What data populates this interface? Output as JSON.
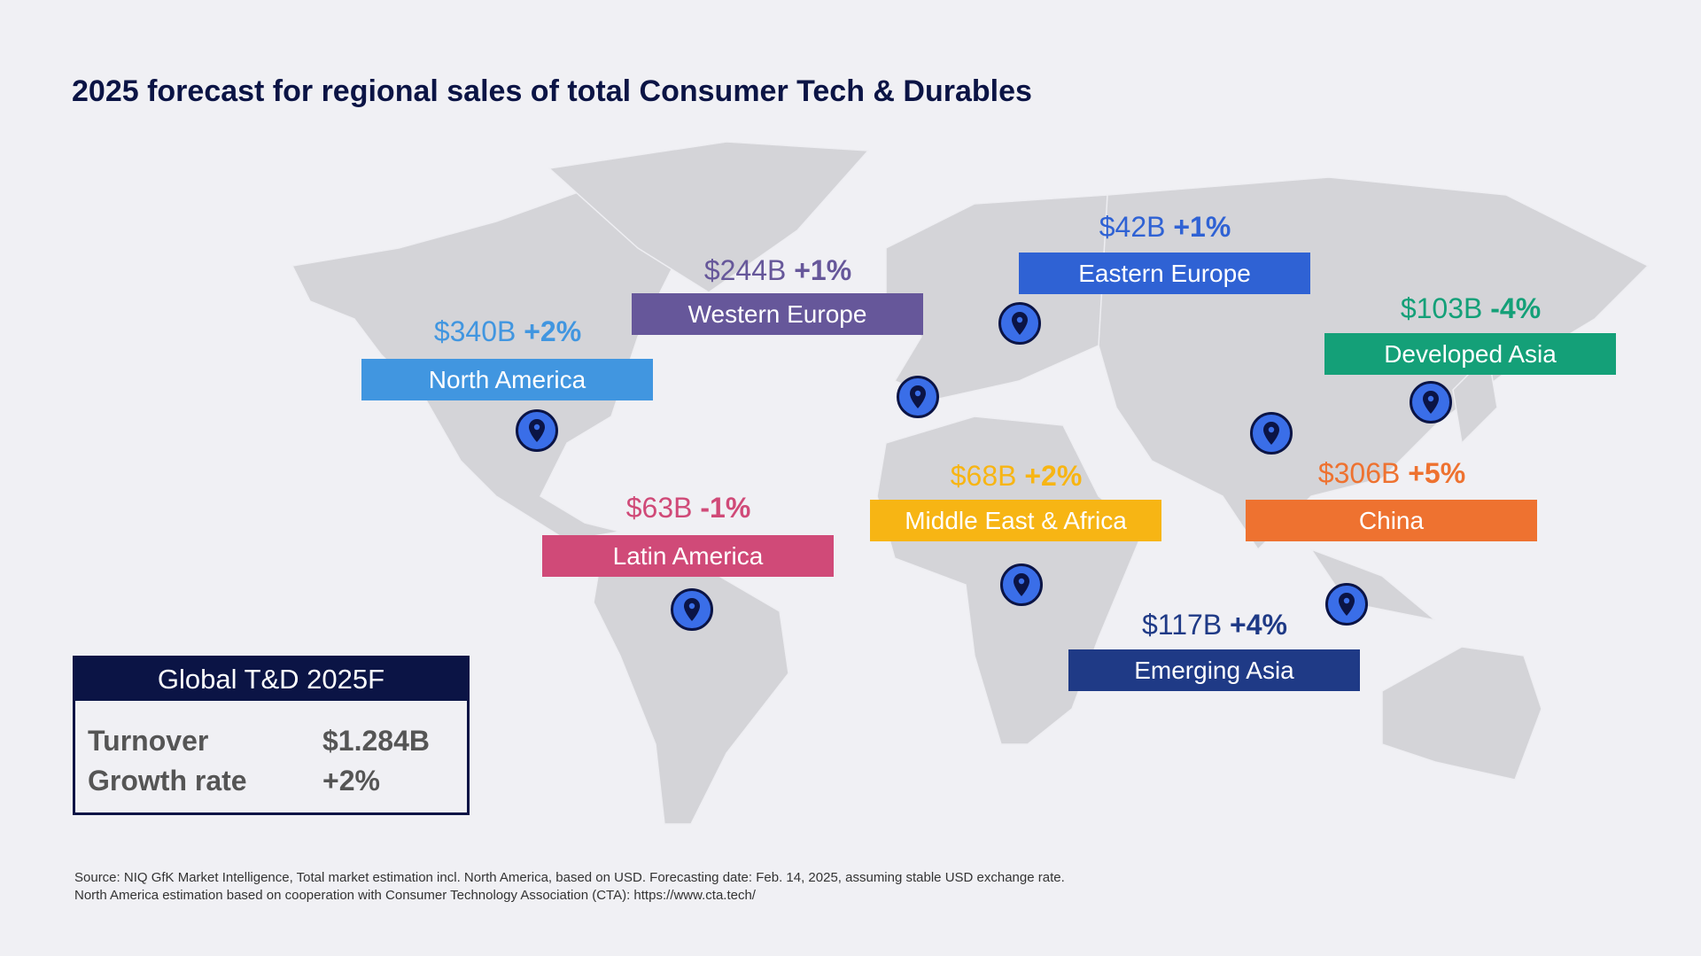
{
  "title": "2025 forecast for regional sales of total Consumer Tech & Durables",
  "regions": [
    {
      "name": "North America",
      "value": "$340B",
      "growth": "+2%",
      "color": "#4196e0"
    },
    {
      "name": "Western Europe",
      "value": "$244B",
      "growth": "+1%",
      "color": "#66579a"
    },
    {
      "name": "Eastern Europe",
      "value": "$42B",
      "growth": "+1%",
      "color": "#2f62d4"
    },
    {
      "name": "Developed Asia",
      "value": "$103B",
      "growth": "-4%",
      "color": "#14a078"
    },
    {
      "name": "China",
      "value": "$306B",
      "growth": "+5%",
      "color": "#ee7230"
    },
    {
      "name": "Middle East & Africa",
      "value": "$68B",
      "growth": "+2%",
      "color": "#f7b514"
    },
    {
      "name": "Latin America",
      "value": "$63B",
      "growth": "-1%",
      "color": "#d04a78"
    },
    {
      "name": "Emerging Asia",
      "value": "$117B",
      "growth": "+4%",
      "color": "#1f3a86"
    }
  ],
  "pin_icon": "location-pin-icon",
  "summary": {
    "title": "Global T&D 2025F",
    "turnover_label": "Turnover",
    "turnover_value": "$1.284B",
    "growth_label": "Growth rate",
    "growth_value": "+2%"
  },
  "footnote": {
    "line1": "Source: NIQ GfK Market Intelligence, Total market estimation incl. North America, based on USD. Forecasting date: Feb. 14, 2025, assuming stable USD exchange rate.",
    "line2": "North America estimation based on cooperation with Consumer Technology Association (CTA): https://www.cta.tech/"
  }
}
